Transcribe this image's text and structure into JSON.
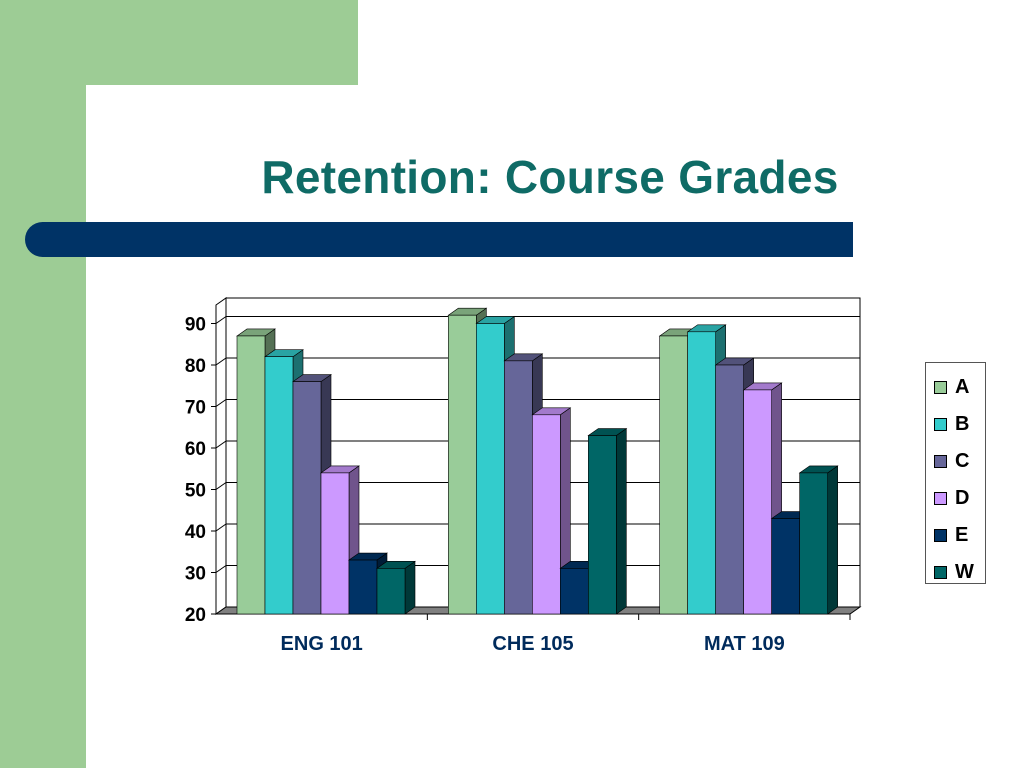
{
  "slide": {
    "title": "Retention: Course Grades"
  },
  "chart_data": {
    "type": "bar",
    "categories": [
      "ENG 101",
      "CHE 105",
      "MAT 109"
    ],
    "series": [
      {
        "name": "A",
        "color": "#99cc99",
        "values": [
          87,
          92,
          87
        ]
      },
      {
        "name": "B",
        "color": "#33cccc",
        "values": [
          82,
          90,
          88
        ]
      },
      {
        "name": "C",
        "color": "#666699",
        "values": [
          76,
          81,
          80
        ]
      },
      {
        "name": "D",
        "color": "#cc99ff",
        "values": [
          54,
          68,
          74
        ]
      },
      {
        "name": "E",
        "color": "#003366",
        "values": [
          33,
          31,
          43
        ]
      },
      {
        "name": "W",
        "color": "#006666",
        "values": [
          31,
          63,
          54
        ]
      }
    ],
    "ylim": [
      20,
      90
    ],
    "yticks": [
      "20",
      "30",
      "40",
      "50",
      "60",
      "70",
      "80",
      "90"
    ],
    "grid": true,
    "style": "3d-clustered-column",
    "legend_position": "right"
  }
}
